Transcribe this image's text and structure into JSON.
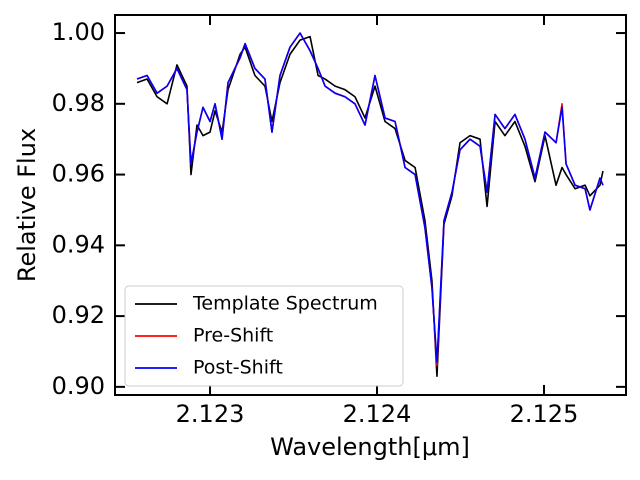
{
  "chart_data": {
    "type": "line",
    "xlabel": "Wavelength[μm]",
    "ylabel": "Relative Flux",
    "x": [
      2.122563,
      2.122623,
      2.122683,
      2.122743,
      2.122802,
      2.122862,
      2.122886,
      2.122922,
      2.122958,
      2.123,
      2.12303,
      2.123072,
      2.123108,
      2.12318,
      2.12321,
      2.123269,
      2.123329,
      2.123371,
      2.123419,
      2.123479,
      2.123539,
      2.123599,
      2.123647,
      2.123689,
      2.123749,
      2.123808,
      2.123868,
      2.123928,
      2.123988,
      2.124048,
      2.124108,
      2.124168,
      2.124228,
      2.124287,
      2.124329,
      2.124359,
      2.124401,
      2.124449,
      2.124497,
      2.124557,
      2.124617,
      2.124659,
      2.124707,
      2.124766,
      2.124826,
      2.124886,
      2.124946,
      2.125006,
      2.125072,
      2.125108,
      2.125132,
      2.125186,
      2.125246,
      2.125275,
      2.125335,
      2.125353
    ],
    "series": [
      {
        "name": "Template Spectrum",
        "color": "#000000",
        "values": [
          0.986,
          0.987,
          0.982,
          0.98,
          0.991,
          0.985,
          0.96,
          0.974,
          0.971,
          0.972,
          0.978,
          0.972,
          0.984,
          0.994,
          0.996,
          0.988,
          0.985,
          0.975,
          0.986,
          0.994,
          0.998,
          0.999,
          0.988,
          0.987,
          0.985,
          0.984,
          0.982,
          0.976,
          0.985,
          0.975,
          0.973,
          0.964,
          0.962,
          0.947,
          0.93,
          0.903,
          0.946,
          0.954,
          0.969,
          0.971,
          0.97,
          0.951,
          0.975,
          0.971,
          0.975,
          0.968,
          0.958,
          0.971,
          0.957,
          0.962,
          0.96,
          0.956,
          0.957,
          0.954,
          0.957,
          0.961
        ]
      },
      {
        "name": "Pre-Shift",
        "color": "#ff0000",
        "values": [
          0.987,
          0.988,
          0.983,
          0.985,
          0.99,
          0.984,
          0.963,
          0.972,
          0.979,
          0.975,
          0.98,
          0.97,
          0.986,
          0.993,
          0.997,
          0.99,
          0.987,
          0.972,
          0.988,
          0.996,
          1.0,
          0.995,
          0.99,
          0.985,
          0.983,
          0.982,
          0.98,
          0.974,
          0.988,
          0.976,
          0.975,
          0.962,
          0.96,
          0.945,
          0.928,
          0.906,
          0.947,
          0.955,
          0.967,
          0.97,
          0.968,
          0.955,
          0.977,
          0.973,
          0.977,
          0.97,
          0.959,
          0.972,
          0.969,
          0.98,
          0.963,
          0.957,
          0.956,
          0.95,
          0.959,
          0.957
        ]
      },
      {
        "name": "Post-Shift",
        "color": "#0000ff",
        "values": [
          0.987,
          0.988,
          0.983,
          0.985,
          0.99,
          0.984,
          0.963,
          0.972,
          0.979,
          0.975,
          0.98,
          0.97,
          0.986,
          0.993,
          0.997,
          0.99,
          0.987,
          0.972,
          0.988,
          0.996,
          1.0,
          0.995,
          0.99,
          0.985,
          0.983,
          0.982,
          0.98,
          0.974,
          0.988,
          0.976,
          0.975,
          0.962,
          0.96,
          0.945,
          0.928,
          0.907,
          0.947,
          0.955,
          0.967,
          0.97,
          0.968,
          0.955,
          0.977,
          0.973,
          0.977,
          0.97,
          0.959,
          0.972,
          0.969,
          0.979,
          0.963,
          0.957,
          0.956,
          0.95,
          0.959,
          0.957
        ]
      }
    ],
    "xlim": [
      2.122431,
      2.125491
    ],
    "xticks": [
      2.123,
      2.124,
      2.125
    ],
    "ylim": [
      0.8977,
      1.0051
    ],
    "yticks": [
      {
        "value": 0.9,
        "label": "0.90"
      },
      0.92,
      0.94,
      0.96,
      0.98,
      {
        "value": 1.0,
        "label": "1.00"
      }
    ],
    "grid": false,
    "legend": "lower left"
  }
}
